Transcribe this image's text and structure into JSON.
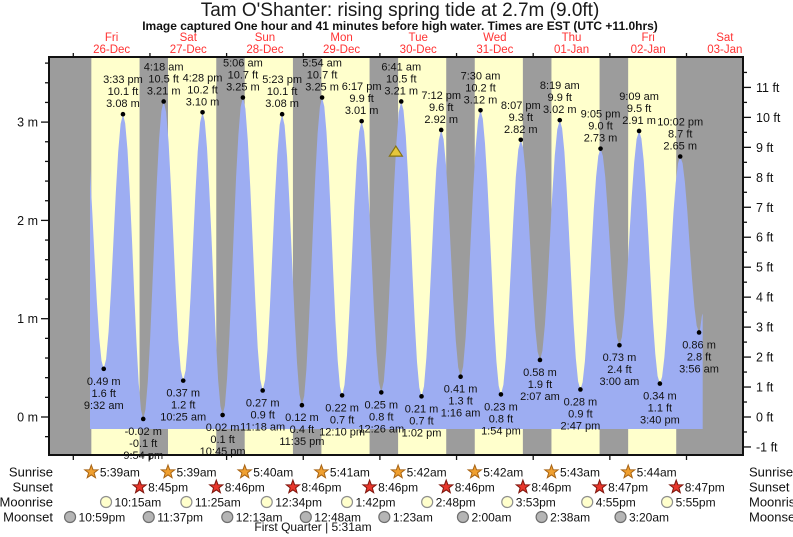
{
  "title": "Tam O'Shanter: rising  spring tide at 2.7m (9.0ft)",
  "subtitle": "Image captured One hour and 41 minutes before high water. Times are EST (UTC +11.0hrs)",
  "footer": "First Quarter | 5:31am",
  "colors": {
    "night_band": "#9c9c9c",
    "day_band": "#ffffcc",
    "tide_fill": "#9dadf2",
    "day_label": "#ff3333",
    "axis": "#111111",
    "dot": "#000000",
    "sunrise_star": "#f0a030",
    "sunrise_star_edge": "#a86414",
    "sunset_star": "#e8372c",
    "sunset_star_edge": "#7e150c",
    "moonrise_fill": "#ffffcc",
    "moonrise_edge": "#8f8f8f",
    "moonset_fill": "#b5b5b5",
    "moonset_edge": "#6e6e6e",
    "marker_fill": "#e6c63c",
    "marker_edge": "#857312"
  },
  "chart_data": {
    "type": "area",
    "title": "Tam O'Shanter: rising  spring tide at 2.7m (9.0ft)",
    "y_axis_left": {
      "unit": "m",
      "ticks": [
        0,
        1,
        2,
        3
      ],
      "minor_step": 0.2
    },
    "y_axis_right": {
      "unit": "ft",
      "ticks": [
        -1,
        0,
        1,
        2,
        3,
        4,
        5,
        6,
        7,
        8,
        9,
        10,
        11
      ],
      "minor_step": 0.5
    },
    "ylim_m": [
      -0.39,
      3.66
    ],
    "grid": false,
    "days": [
      {
        "dow": "Fri",
        "date": "26-Dec"
      },
      {
        "dow": "Sat",
        "date": "27-Dec"
      },
      {
        "dow": "Sun",
        "date": "28-Dec"
      },
      {
        "dow": "Mon",
        "date": "29-Dec"
      },
      {
        "dow": "Tue",
        "date": "30-Dec"
      },
      {
        "dow": "Wed",
        "date": "31-Dec"
      },
      {
        "dow": "Thu",
        "date": "01-Jan"
      },
      {
        "dow": "Fri",
        "date": "02-Jan"
      },
      {
        "dow": "Sat",
        "date": "03-Jan"
      }
    ],
    "tides": [
      {
        "day": 0,
        "time": "9:32 am",
        "m": "0.49",
        "ft": "1.6",
        "type": "low"
      },
      {
        "day": 0,
        "time": "3:33 pm",
        "m": "3.08",
        "ft": "10.1",
        "type": "high"
      },
      {
        "day": 0,
        "time": "9:54 pm",
        "m": "-0.02",
        "ft": "-0.1",
        "type": "low"
      },
      {
        "day": 1,
        "time": "4:18 am",
        "m": "3.21",
        "ft": "10.5",
        "type": "high"
      },
      {
        "day": 1,
        "time": "10:25 am",
        "m": "0.37",
        "ft": "1.2",
        "type": "low"
      },
      {
        "day": 1,
        "time": "4:28 pm",
        "m": "3.10",
        "ft": "10.2",
        "type": "high"
      },
      {
        "day": 1,
        "time": "10:45 pm",
        "m": "0.02",
        "ft": "0.1",
        "type": "low"
      },
      {
        "day": 2,
        "time": "5:06 am",
        "m": "3.25",
        "ft": "10.7",
        "type": "high"
      },
      {
        "day": 2,
        "time": "11:18 am",
        "m": "0.27",
        "ft": "0.9",
        "type": "low"
      },
      {
        "day": 2,
        "time": "5:23 pm",
        "m": "3.08",
        "ft": "10.1",
        "type": "high"
      },
      {
        "day": 2,
        "time": "11:35 pm",
        "m": "0.12",
        "ft": "0.4",
        "type": "low"
      },
      {
        "day": 3,
        "time": "5:54 am",
        "m": "3.25",
        "ft": "10.7",
        "type": "high"
      },
      {
        "day": 3,
        "time": "12:10 pm",
        "m": "0.22",
        "ft": "0.7",
        "type": "low"
      },
      {
        "day": 3,
        "time": "6:17 pm",
        "m": "3.01",
        "ft": "9.9",
        "type": "high"
      },
      {
        "day": 4,
        "time": "12:26 am",
        "m": "0.25",
        "ft": "0.8",
        "type": "low"
      },
      {
        "day": 4,
        "time": "6:41 am",
        "m": "3.21",
        "ft": "10.5",
        "type": "high"
      },
      {
        "day": 4,
        "time": "1:02 pm",
        "m": "0.21",
        "ft": "0.7",
        "type": "low"
      },
      {
        "day": 4,
        "time": "7:12 pm",
        "m": "2.92",
        "ft": "9.6",
        "type": "high"
      },
      {
        "day": 5,
        "time": "1:16 am",
        "m": "0.41",
        "ft": "1.3",
        "type": "low"
      },
      {
        "day": 5,
        "time": "7:30 am",
        "m": "3.12",
        "ft": "10.2",
        "type": "high"
      },
      {
        "day": 5,
        "time": "1:54 pm",
        "m": "0.23",
        "ft": "0.8",
        "type": "low"
      },
      {
        "day": 5,
        "time": "8:07 pm",
        "m": "2.82",
        "ft": "9.3",
        "type": "high"
      },
      {
        "day": 6,
        "time": "2:07 am",
        "m": "0.58",
        "ft": "1.9",
        "type": "low"
      },
      {
        "day": 6,
        "time": "8:19 am",
        "m": "3.02",
        "ft": "9.9",
        "type": "high"
      },
      {
        "day": 6,
        "time": "2:47 pm",
        "m": "0.28",
        "ft": "0.9",
        "type": "low"
      },
      {
        "day": 6,
        "time": "9:05 pm",
        "m": "2.73",
        "ft": "9.0",
        "type": "high"
      },
      {
        "day": 7,
        "time": "3:00 am",
        "m": "0.73",
        "ft": "2.4",
        "type": "low"
      },
      {
        "day": 7,
        "time": "9:09 am",
        "m": "2.91",
        "ft": "9.5",
        "type": "high"
      },
      {
        "day": 7,
        "time": "3:40 pm",
        "m": "0.34",
        "ft": "1.1",
        "type": "low"
      },
      {
        "day": 7,
        "time": "10:02 pm",
        "m": "2.65",
        "ft": "8.7",
        "type": "high"
      },
      {
        "day": 8,
        "time": "3:56 am",
        "m": "0.86",
        "ft": "2.8",
        "type": "low"
      }
    ],
    "curve_edges": {
      "start": {
        "day": 0,
        "time": "3:05 am",
        "m": "3.2"
      },
      "end": {
        "day": 8,
        "time": "5:05 am",
        "m": "1.05"
      }
    },
    "current_marker": {
      "day": 4,
      "time": "5:00 am",
      "m": "2.7",
      "note": "1h41m before high water"
    },
    "sun_moon": {
      "rows": [
        {
          "label": "Sunrise",
          "icon": "sunrise-star-icon",
          "events": [
            {
              "d": 0,
              "t": "5:39am"
            },
            {
              "d": 1,
              "t": "5:39am"
            },
            {
              "d": 2,
              "t": "5:40am"
            },
            {
              "d": 3,
              "t": "5:41am"
            },
            {
              "d": 4,
              "t": "5:42am"
            },
            {
              "d": 5,
              "t": "5:42am"
            },
            {
              "d": 6,
              "t": "5:43am"
            },
            {
              "d": 7,
              "t": "5:44am"
            }
          ]
        },
        {
          "label": "Sunset",
          "icon": "sunset-star-icon",
          "events": [
            {
              "d": 0,
              "t": "8:45pm"
            },
            {
              "d": 1,
              "t": "8:46pm"
            },
            {
              "d": 2,
              "t": "8:46pm"
            },
            {
              "d": 3,
              "t": "8:46pm"
            },
            {
              "d": 4,
              "t": "8:46pm"
            },
            {
              "d": 5,
              "t": "8:46pm"
            },
            {
              "d": 6,
              "t": "8:47pm"
            },
            {
              "d": 7,
              "t": "8:47pm"
            }
          ]
        },
        {
          "label": "Moonrise",
          "icon": "moonrise-circle-icon",
          "events": [
            {
              "d": 0,
              "t": "10:15am"
            },
            {
              "d": 1,
              "t": "11:25am"
            },
            {
              "d": 2,
              "t": "12:34pm"
            },
            {
              "d": 3,
              "t": "1:42pm"
            },
            {
              "d": 4,
              "t": "2:48pm"
            },
            {
              "d": 5,
              "t": "3:53pm"
            },
            {
              "d": 6,
              "t": "4:55pm"
            },
            {
              "d": 7,
              "t": "5:55pm"
            }
          ]
        },
        {
          "label": "Moonset",
          "icon": "moonset-circle-icon",
          "events": [
            {
              "d": -1,
              "t": "10:59pm"
            },
            {
              "d": 0,
              "t": "11:37pm"
            },
            {
              "d": 2,
              "t": "12:13am"
            },
            {
              "d": 3,
              "t": "12:48am"
            },
            {
              "d": 4,
              "t": "1:23am"
            },
            {
              "d": 5,
              "t": "2:00am"
            },
            {
              "d": 6,
              "t": "2:38am"
            },
            {
              "d": 7,
              "t": "3:20am"
            }
          ]
        }
      ]
    }
  }
}
